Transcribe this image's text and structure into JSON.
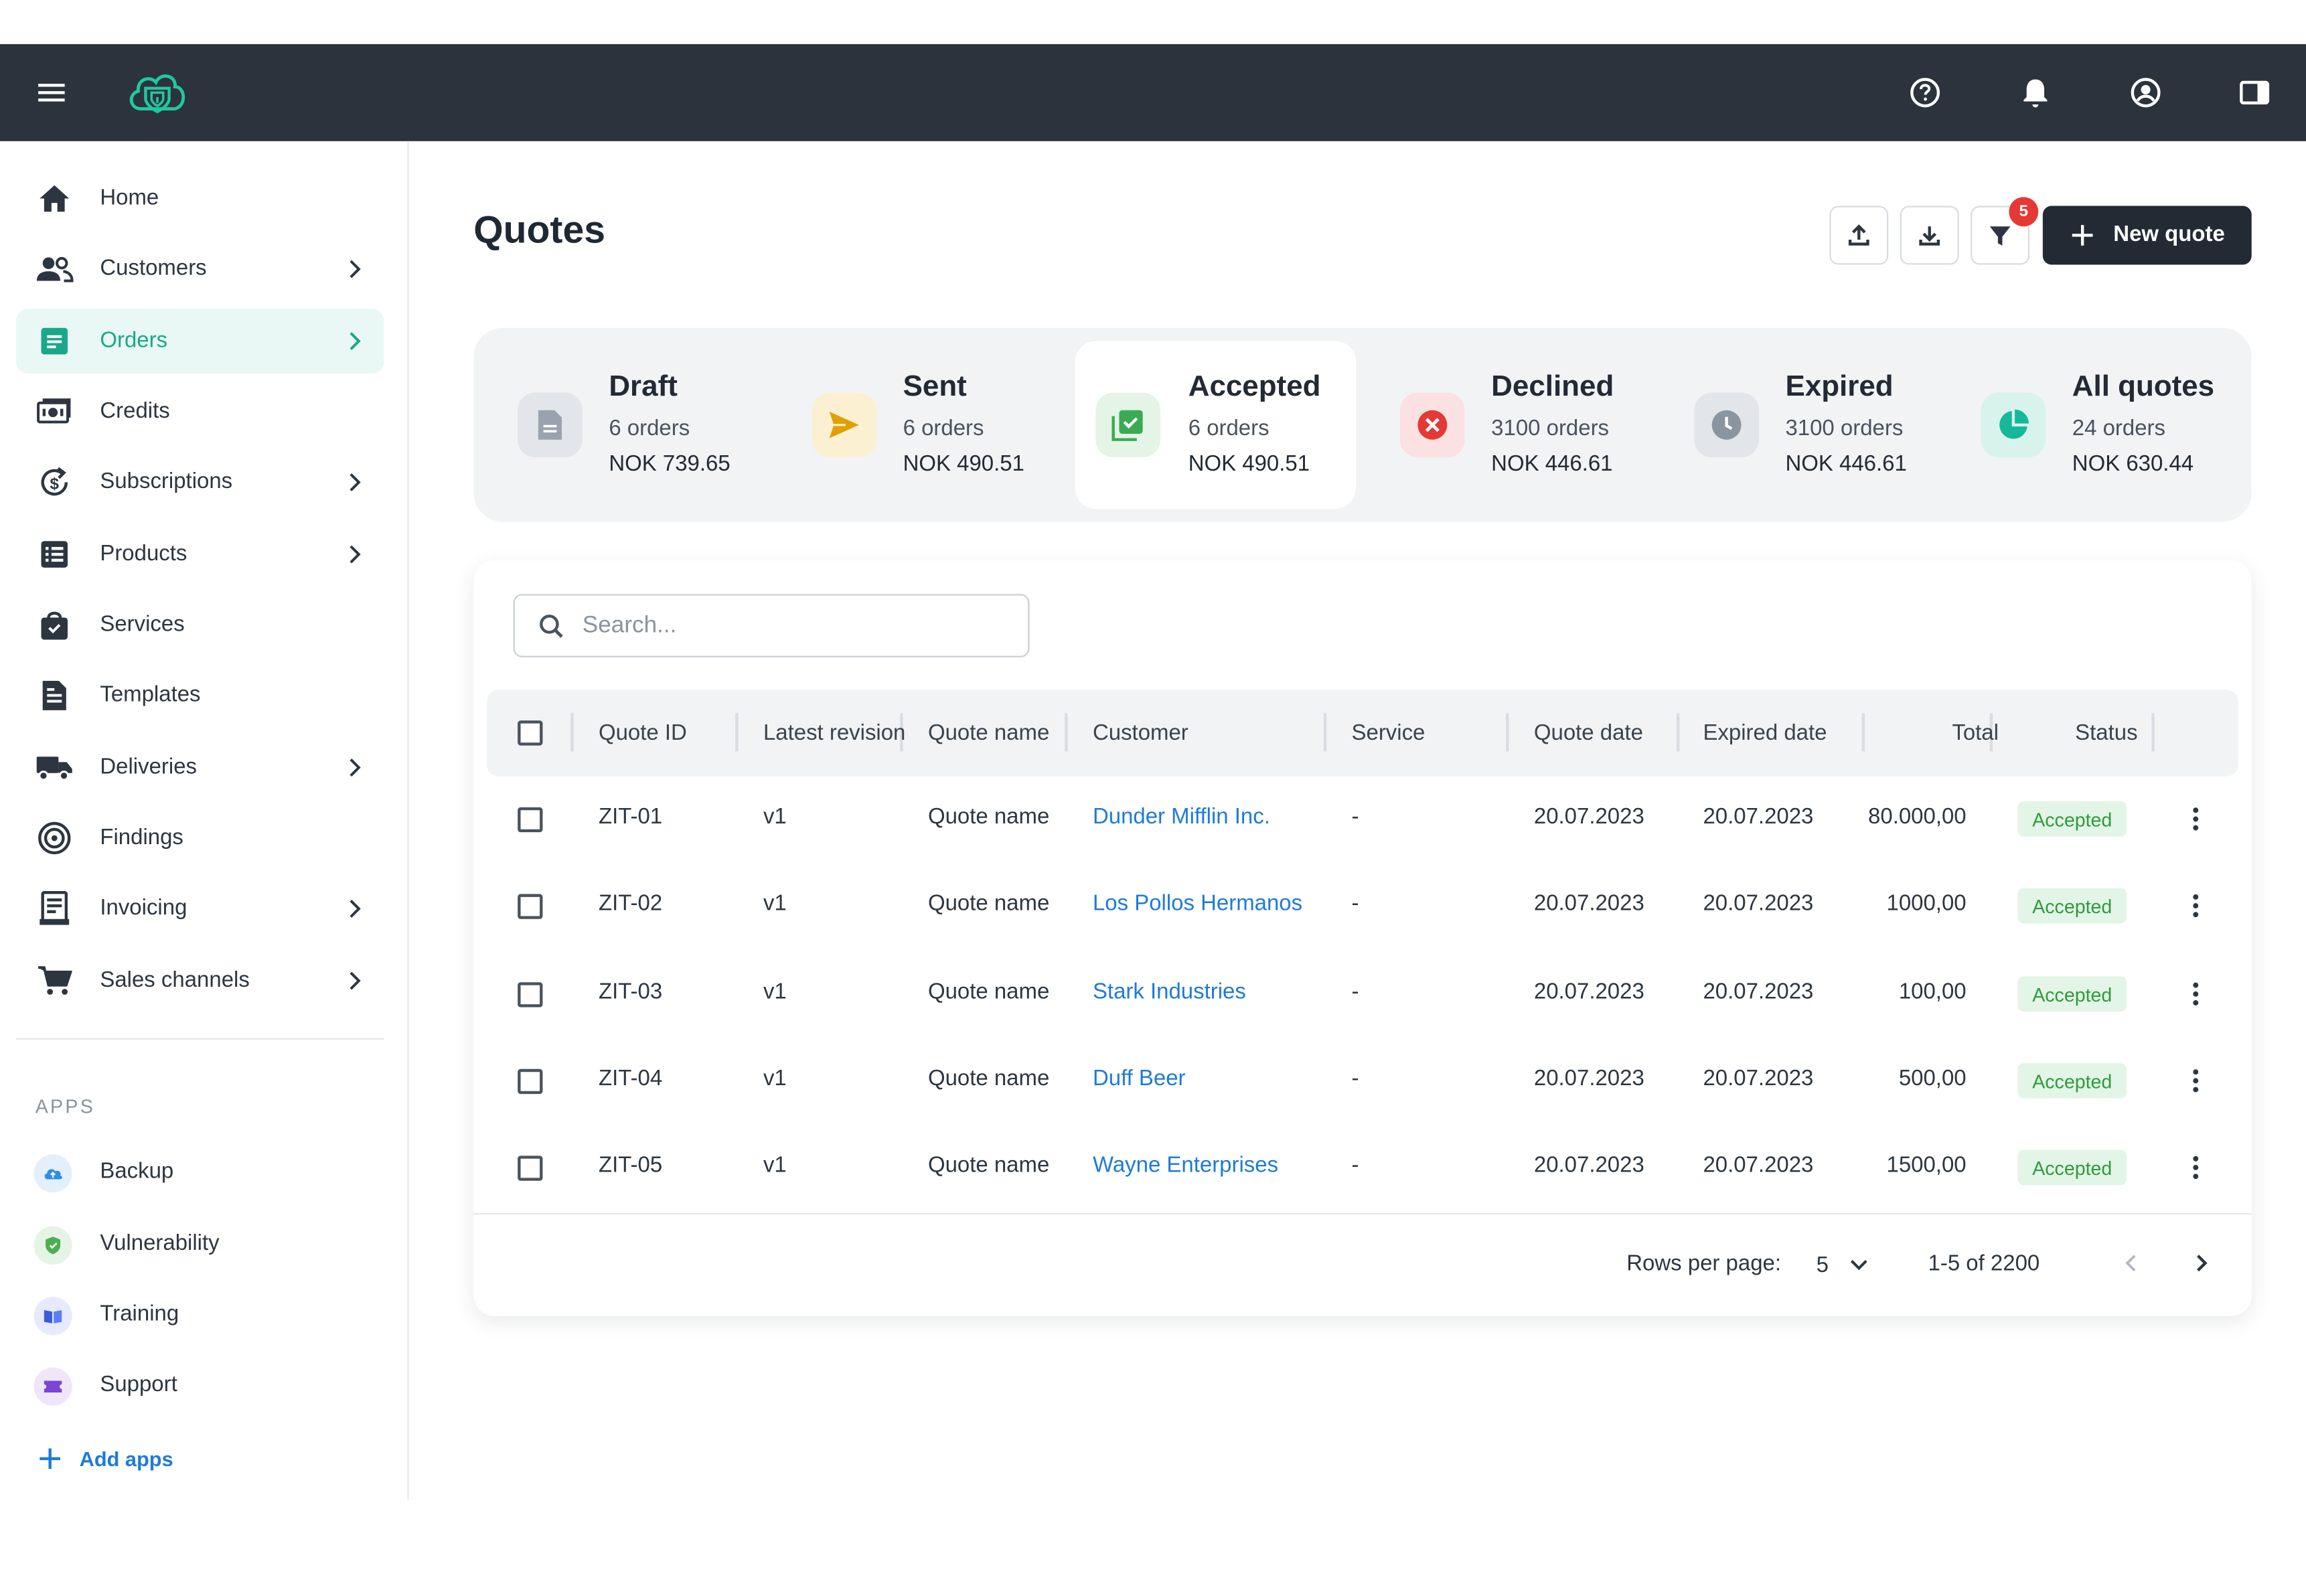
{
  "app": {
    "top_icons": [
      "menu-icon",
      "help-icon",
      "bell-icon",
      "account-icon",
      "sidebar-panel-icon"
    ],
    "brand_color": "#1aa88a"
  },
  "sidebar": {
    "items": [
      {
        "label": "Home",
        "icon": "home-icon",
        "chevron": false
      },
      {
        "label": "Customers",
        "icon": "people-icon",
        "chevron": true
      },
      {
        "label": "Orders",
        "icon": "orders-icon",
        "chevron": true,
        "active": true
      },
      {
        "label": "Credits",
        "icon": "credits-icon",
        "chevron": false
      },
      {
        "label": "Subscriptions",
        "icon": "subscriptions-icon",
        "chevron": true
      },
      {
        "label": "Products",
        "icon": "products-icon",
        "chevron": true
      },
      {
        "label": "Services",
        "icon": "services-icon",
        "chevron": false
      },
      {
        "label": "Templates",
        "icon": "templates-icon",
        "chevron": false
      },
      {
        "label": "Deliveries",
        "icon": "truck-icon",
        "chevron": true
      },
      {
        "label": "Findings",
        "icon": "findings-icon",
        "chevron": false
      },
      {
        "label": "Invoicing",
        "icon": "invoice-icon",
        "chevron": true
      },
      {
        "label": "Sales channels",
        "icon": "cart-icon",
        "chevron": true
      }
    ],
    "apps_title": "APPS",
    "apps": [
      {
        "label": "Backup",
        "icon": "cloud-icon"
      },
      {
        "label": "Vulnerability",
        "icon": "shield-icon"
      },
      {
        "label": "Training",
        "icon": "book-icon"
      },
      {
        "label": "Support",
        "icon": "ticket-icon"
      }
    ],
    "add_apps": "Add apps"
  },
  "page": {
    "title": "Quotes",
    "filter_count": "5",
    "new_quote": "New quote"
  },
  "summary": [
    {
      "title": "Draft",
      "count": "6 orders",
      "amount": "NOK 739.65",
      "icon": "document-icon"
    },
    {
      "title": "Sent",
      "count": "6 orders",
      "amount": "NOK 490.51",
      "icon": "send-icon"
    },
    {
      "title": "Accepted",
      "count": "6 orders",
      "amount": "NOK 490.51",
      "icon": "accepted-icon",
      "active": true
    },
    {
      "title": "Declined",
      "count": "3100 orders",
      "amount": "NOK 446.61",
      "icon": "declined-icon"
    },
    {
      "title": "Expired",
      "count": "3100 orders",
      "amount": "NOK 446.61",
      "icon": "clock-icon"
    },
    {
      "title": "All quotes",
      "count": "24 orders",
      "amount": "NOK 630.44",
      "icon": "pie-icon"
    }
  ],
  "search": {
    "placeholder": "Search..."
  },
  "table": {
    "columns": [
      "Quote ID",
      "Latest revision",
      "Quote name",
      "Customer",
      "Service",
      "Quote date",
      "Expired date",
      "Total",
      "Status"
    ],
    "rows": [
      {
        "id": "ZIT-01",
        "revision": "v1",
        "name": "Quote name",
        "customer": "Dunder Mifflin Inc.",
        "service": "-",
        "quote_date": "20.07.2023",
        "expired_date": "20.07.2023",
        "total": "80.000,00",
        "status": "Accepted"
      },
      {
        "id": "ZIT-02",
        "revision": "v1",
        "name": "Quote name",
        "customer": "Los Pollos Hermanos",
        "service": "-",
        "quote_date": "20.07.2023",
        "expired_date": "20.07.2023",
        "total": "1000,00",
        "status": "Accepted"
      },
      {
        "id": "ZIT-03",
        "revision": "v1",
        "name": "Quote name",
        "customer": "Stark Industries",
        "service": "-",
        "quote_date": "20.07.2023",
        "expired_date": "20.07.2023",
        "total": "100,00",
        "status": "Accepted"
      },
      {
        "id": "ZIT-04",
        "revision": "v1",
        "name": "Quote name",
        "customer": "Duff Beer",
        "service": "-",
        "quote_date": "20.07.2023",
        "expired_date": "20.07.2023",
        "total": "500,00",
        "status": "Accepted"
      },
      {
        "id": "ZIT-05",
        "revision": "v1",
        "name": "Quote name",
        "customer": "Wayne Enterprises",
        "service": "-",
        "quote_date": "20.07.2023",
        "expired_date": "20.07.2023",
        "total": "1500,00",
        "status": "Accepted"
      }
    ]
  },
  "pagination": {
    "rows_per_page_label": "Rows per page:",
    "rows_per_page": "5",
    "range": "1-5 of 2200"
  }
}
